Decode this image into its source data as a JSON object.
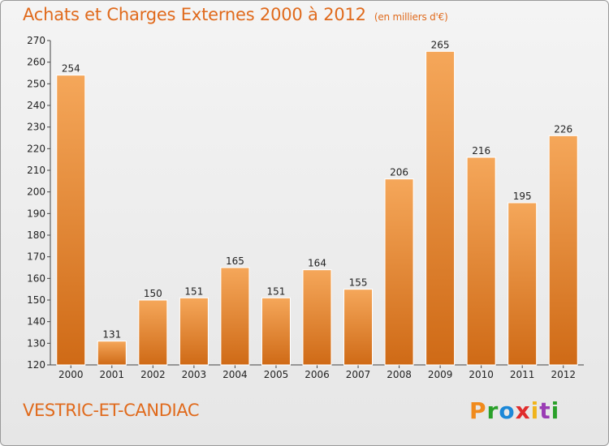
{
  "header": {
    "title": "Achats et Charges Externes 2000 à 2012",
    "subtitle": "(en milliers d'€)"
  },
  "footer": {
    "commune": "VESTRIC-ET-CANDIAC",
    "logo_text": "Proxiti",
    "logo_colors": [
      "#f08a1c",
      "#2aa02a",
      "#1c88d8",
      "#e02c2c",
      "#f0b41c",
      "#9a3cb4",
      "#2aa02a"
    ]
  },
  "chart_data": {
    "type": "bar",
    "title": "Achats et Charges Externes 2000 à 2012",
    "subtitle": "(en milliers d'€)",
    "categories": [
      "2000",
      "2001",
      "2002",
      "2003",
      "2004",
      "2005",
      "2006",
      "2007",
      "2008",
      "2009",
      "2010",
      "2011",
      "2012"
    ],
    "values": [
      254,
      131,
      150,
      151,
      165,
      151,
      164,
      155,
      206,
      265,
      216,
      195,
      226
    ],
    "ylim": [
      120,
      270
    ],
    "yticks": [
      120,
      130,
      140,
      150,
      160,
      170,
      180,
      190,
      200,
      210,
      220,
      230,
      240,
      250,
      260,
      270
    ],
    "grid": false,
    "bar_color_top": "#f5a75a",
    "bar_color_bottom": "#cf6a16"
  }
}
